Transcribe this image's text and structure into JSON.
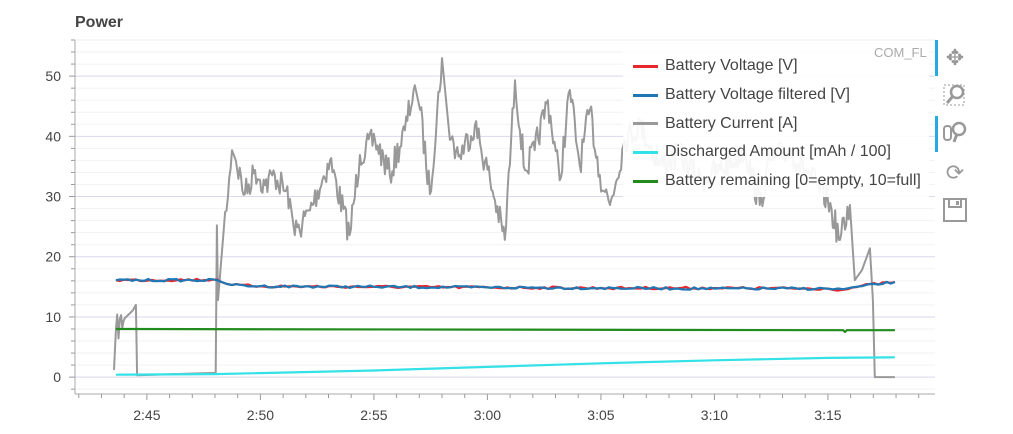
{
  "chart_data": {
    "type": "line",
    "title": "Power",
    "xlabel": "",
    "ylabel": "",
    "x_ticks": [
      "2:45",
      "2:50",
      "2:55",
      "3:00",
      "3:05",
      "3:10",
      "3:15"
    ],
    "y_ticks": [
      "0",
      "10",
      "20",
      "30",
      "40",
      "50"
    ],
    "xlim": [
      "2:41:50",
      "3:19:43"
    ],
    "ylim": [
      -2.8,
      56
    ],
    "grid": true,
    "legend_position": "top-right",
    "series": [
      {
        "name": "Battery Voltage [V]",
        "color": "#e8262d",
        "points": [
          [
            "2:43:38",
            16.1
          ],
          [
            "2:48:05",
            16.2
          ],
          [
            "2:48:45",
            15.3
          ],
          [
            "2:50:00",
            15.1
          ],
          [
            "2:55:00",
            15.0
          ],
          [
            "3:00:00",
            14.9
          ],
          [
            "3:05:00",
            14.8
          ],
          [
            "3:10:00",
            14.8
          ],
          [
            "3:15:00",
            14.7
          ],
          [
            "3:15:40",
            14.5
          ],
          [
            "3:16:30",
            15.2
          ],
          [
            "3:17:57",
            15.8
          ]
        ]
      },
      {
        "name": "Battery Voltage filtered [V]",
        "color": "#1f77b4",
        "points": [
          [
            "2:43:38",
            16.1
          ],
          [
            "2:48:05",
            16.1
          ],
          [
            "2:48:45",
            15.3
          ],
          [
            "2:50:00",
            15.1
          ],
          [
            "2:55:00",
            15.0
          ],
          [
            "3:00:00",
            14.9
          ],
          [
            "3:05:00",
            14.8
          ],
          [
            "3:10:00",
            14.7
          ],
          [
            "3:15:00",
            14.7
          ],
          [
            "3:15:40",
            14.6
          ],
          [
            "3:16:30",
            15.1
          ],
          [
            "3:17:57",
            15.8
          ]
        ]
      },
      {
        "name": "Battery Current [A]",
        "color": "#999999",
        "points": [
          [
            "2:43:33",
            1.2
          ],
          [
            "2:43:38",
            7.8
          ],
          [
            "2:44:02",
            9.8
          ],
          [
            "2:44:23",
            11.1
          ],
          [
            "2:44:31",
            12
          ],
          [
            "2:44:34",
            0.3
          ],
          [
            "2:48:02",
            0.7
          ],
          [
            "2:48:05",
            25.2
          ],
          [
            "2:48:08",
            12.8
          ],
          [
            "2:48:23",
            24.4
          ],
          [
            "2:48:45",
            37.7
          ],
          [
            "2:48:55",
            36
          ],
          [
            "2:49:19",
            30.4
          ],
          [
            "2:49:46",
            34.4
          ],
          [
            "2:50:12",
            31.9
          ],
          [
            "2:50:38",
            33.6
          ],
          [
            "2:51:18",
            29.6
          ],
          [
            "2:51:31",
            23.6
          ],
          [
            "2:52:11",
            27.7
          ],
          [
            "2:53:04",
            36
          ],
          [
            "2:53:56",
            23.6
          ],
          [
            "2:54:23",
            36.9
          ],
          [
            "2:55:03",
            39.4
          ],
          [
            "2:55:42",
            33.6
          ],
          [
            "2:56:22",
            41
          ],
          [
            "2:56:48",
            48.5
          ],
          [
            "2:57:02",
            44.4
          ],
          [
            "2:57:28",
            30.4
          ],
          [
            "2:58:00",
            53
          ],
          [
            "2:58:21",
            39.4
          ],
          [
            "2:58:47",
            36.9
          ],
          [
            "2:59:27",
            41.9
          ],
          [
            "3:00:07",
            32.7
          ],
          [
            "3:00:46",
            22.8
          ],
          [
            "3:01:13",
            49.3
          ],
          [
            "3:01:39",
            34.4
          ],
          [
            "3:02:05",
            37.7
          ],
          [
            "3:02:40",
            46
          ],
          [
            "3:03:11",
            32.7
          ],
          [
            "3:03:38",
            47.7
          ],
          [
            "3:04:04",
            35.2
          ],
          [
            "3:04:31",
            44.4
          ],
          [
            "3:04:57",
            33.6
          ],
          [
            "3:05:24",
            28.6
          ],
          [
            "3:06:03",
            39.4
          ],
          [
            "3:06:43",
            41.9
          ],
          [
            "3:07:36",
            35.2
          ],
          [
            "3:08:29",
            36.9
          ],
          [
            "3:09:22",
            32.7
          ],
          [
            "3:10:15",
            34.4
          ],
          [
            "3:11:21",
            37.7
          ],
          [
            "3:12:00",
            28.6
          ],
          [
            "3:12:27",
            36
          ],
          [
            "3:13:20",
            37.7
          ],
          [
            "3:14:12",
            33.6
          ],
          [
            "3:15:00",
            29.4
          ],
          [
            "3:15:32",
            22.8
          ],
          [
            "3:15:58",
            28.6
          ],
          [
            "3:16:11",
            16.1
          ],
          [
            "3:16:30",
            17.8
          ],
          [
            "3:16:51",
            21.4
          ],
          [
            "3:16:59",
            12.8
          ],
          [
            "3:17:04",
            0
          ],
          [
            "3:17:57",
            0
          ]
        ]
      },
      {
        "name": "Discharged Amount [mAh / 100]",
        "color": "#33e1e6",
        "points": [
          [
            "2:43:38",
            0.4
          ],
          [
            "2:48:00",
            0.5
          ],
          [
            "2:55:00",
            1.1
          ],
          [
            "3:00:00",
            1.7
          ],
          [
            "3:05:00",
            2.3
          ],
          [
            "3:10:00",
            2.8
          ],
          [
            "3:15:00",
            3.2
          ],
          [
            "3:17:57",
            3.3
          ]
        ]
      },
      {
        "name": "Battery remaining [0=empty, 10=full]",
        "color": "#228b1e",
        "points": [
          [
            "2:43:38",
            8.0
          ],
          [
            "3:00:00",
            7.9
          ],
          [
            "3:15:40",
            7.8
          ],
          [
            "3:15:45",
            7.5
          ],
          [
            "3:15:50",
            7.8
          ],
          [
            "3:17:57",
            7.8
          ]
        ]
      }
    ]
  },
  "watermark": "COM_FL",
  "toolbar": [
    "pan-icon",
    "box-zoom-icon",
    "wheel-zoom-icon",
    "reset-icon",
    "save-icon"
  ]
}
